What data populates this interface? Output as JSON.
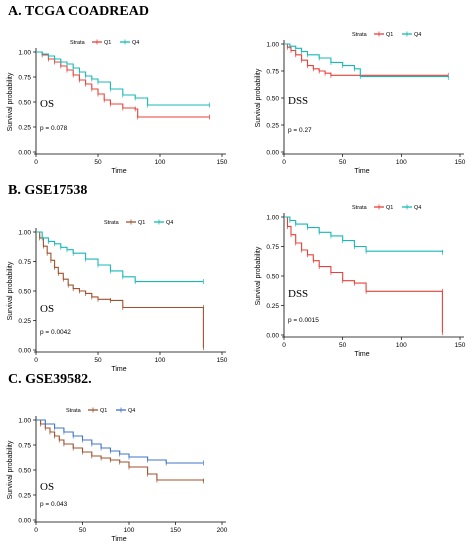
{
  "sections": [
    {
      "title": "A.  TCGA COADREAD"
    },
    {
      "title": "B.  GSE17538"
    },
    {
      "title": "C.  GSE39582."
    }
  ],
  "chart_data": [
    {
      "type": "line",
      "subtype": "kaplan-meier",
      "section": "A",
      "legend_title": "Strata",
      "legend_placement": "top",
      "xlabel": "Time",
      "ylabel": "Survival probability",
      "xticks": [
        "0",
        "50",
        "100",
        "150"
      ],
      "yticks": [
        "0.00",
        "0.25",
        "0.50",
        "0.75",
        "1.00"
      ],
      "xlim": [
        0,
        150
      ],
      "ylim": [
        0,
        1
      ],
      "grid": false,
      "annotation_endpoint": "OS",
      "annotation_p": "p = 0.078",
      "series": [
        {
          "name": "Q1",
          "color": "#e8403a",
          "x": [
            0,
            5,
            10,
            15,
            20,
            25,
            30,
            35,
            40,
            45,
            50,
            55,
            60,
            70,
            80,
            82,
            140
          ],
          "y": [
            1.0,
            0.97,
            0.93,
            0.9,
            0.86,
            0.82,
            0.77,
            0.72,
            0.68,
            0.63,
            0.58,
            0.52,
            0.48,
            0.44,
            0.43,
            0.35,
            0.35
          ]
        },
        {
          "name": "Q4",
          "color": "#17b9b5",
          "x": [
            0,
            5,
            10,
            15,
            20,
            25,
            30,
            35,
            40,
            45,
            50,
            60,
            70,
            80,
            90,
            140
          ],
          "y": [
            1.0,
            0.98,
            0.96,
            0.93,
            0.9,
            0.88,
            0.84,
            0.8,
            0.76,
            0.73,
            0.7,
            0.63,
            0.57,
            0.54,
            0.47,
            0.47
          ]
        }
      ]
    },
    {
      "type": "line",
      "subtype": "kaplan-meier",
      "section": "A",
      "legend_title": "Strata",
      "legend_placement": "top",
      "xlabel": "Time",
      "ylabel": "Survival probability",
      "xticks": [
        "0",
        "50",
        "100",
        "150"
      ],
      "yticks": [
        "0.00",
        "0.25",
        "0.50",
        "0.75",
        "1.00"
      ],
      "xlim": [
        0,
        150
      ],
      "ylim": [
        0,
        1
      ],
      "grid": false,
      "annotation_endpoint": "DSS",
      "annotation_p": "p = 0.27",
      "series": [
        {
          "name": "Q1",
          "color": "#e8403a",
          "x": [
            0,
            3,
            6,
            10,
            15,
            20,
            25,
            30,
            35,
            40,
            140
          ],
          "y": [
            1.0,
            0.97,
            0.94,
            0.9,
            0.85,
            0.8,
            0.77,
            0.75,
            0.73,
            0.71,
            0.71
          ]
        },
        {
          "name": "Q4",
          "color": "#17b9b5",
          "x": [
            0,
            5,
            10,
            15,
            20,
            30,
            40,
            50,
            60,
            65,
            140
          ],
          "y": [
            1.0,
            0.98,
            0.96,
            0.93,
            0.9,
            0.87,
            0.83,
            0.8,
            0.77,
            0.7,
            0.69
          ]
        }
      ]
    },
    {
      "type": "line",
      "subtype": "kaplan-meier",
      "section": "B",
      "legend_title": "Strata",
      "legend_placement": "top",
      "xlabel": "Time",
      "ylabel": "Survival probability",
      "xticks": [
        "0",
        "50",
        "100",
        "150"
      ],
      "yticks": [
        "0.00",
        "0.25",
        "0.50",
        "0.75",
        "1.00"
      ],
      "xlim": [
        0,
        150
      ],
      "ylim": [
        0,
        1
      ],
      "grid": false,
      "annotation_endpoint": "OS",
      "annotation_p": "p = 0.0042",
      "series": [
        {
          "name": "Q1",
          "color": "#a0512d",
          "x": [
            0,
            3,
            6,
            9,
            12,
            15,
            18,
            22,
            26,
            30,
            35,
            40,
            45,
            50,
            60,
            70,
            135,
            135
          ],
          "y": [
            1.0,
            0.95,
            0.88,
            0.82,
            0.76,
            0.7,
            0.65,
            0.6,
            0.55,
            0.52,
            0.5,
            0.48,
            0.45,
            0.43,
            0.42,
            0.36,
            0.36,
            0.02
          ]
        },
        {
          "name": "Q4",
          "color": "#17b9b5",
          "x": [
            0,
            5,
            10,
            15,
            20,
            25,
            30,
            40,
            50,
            60,
            70,
            80,
            135
          ],
          "y": [
            1.0,
            0.95,
            0.92,
            0.9,
            0.87,
            0.85,
            0.82,
            0.77,
            0.72,
            0.67,
            0.62,
            0.58,
            0.58
          ]
        }
      ]
    },
    {
      "type": "line",
      "subtype": "kaplan-meier",
      "section": "B",
      "legend_title": "Strata",
      "legend_placement": "top",
      "xlabel": "Time",
      "ylabel": "Survival probability",
      "xticks": [
        "0",
        "50",
        "100",
        "150"
      ],
      "yticks": [
        "0.00",
        "0.25",
        "0.50",
        "0.75",
        "1.00"
      ],
      "xlim": [
        0,
        150
      ],
      "ylim": [
        0,
        1
      ],
      "grid": false,
      "annotation_endpoint": "DSS",
      "annotation_p": "p = 0.0015",
      "series": [
        {
          "name": "Q1",
          "color": "#e8403a",
          "x": [
            0,
            3,
            6,
            10,
            15,
            20,
            25,
            30,
            40,
            50,
            60,
            70,
            135,
            135
          ],
          "y": [
            1.0,
            0.92,
            0.85,
            0.78,
            0.72,
            0.68,
            0.63,
            0.58,
            0.53,
            0.46,
            0.44,
            0.37,
            0.37,
            0.02
          ]
        },
        {
          "name": "Q4",
          "color": "#17b9b5",
          "x": [
            0,
            5,
            10,
            20,
            30,
            40,
            50,
            60,
            70,
            135
          ],
          "y": [
            1.0,
            0.97,
            0.94,
            0.91,
            0.87,
            0.84,
            0.8,
            0.75,
            0.71,
            0.7
          ]
        }
      ]
    },
    {
      "type": "line",
      "subtype": "kaplan-meier",
      "section": "C",
      "legend_title": "Strata",
      "legend_placement": "top",
      "xlabel": "Time",
      "ylabel": "Survival probability",
      "xticks": [
        "0",
        "50",
        "100",
        "150",
        "200"
      ],
      "yticks": [
        "0.00",
        "0.25",
        "0.50",
        "0.75",
        "1.00"
      ],
      "xlim": [
        0,
        200
      ],
      "ylim": [
        0,
        1
      ],
      "grid": false,
      "annotation_endpoint": "OS",
      "annotation_p": "p = 0.043",
      "series": [
        {
          "name": "Q1",
          "color": "#a0512d",
          "x": [
            0,
            5,
            10,
            15,
            20,
            25,
            30,
            40,
            50,
            60,
            70,
            80,
            90,
            100,
            120,
            130,
            180
          ],
          "y": [
            1.0,
            0.96,
            0.92,
            0.88,
            0.84,
            0.8,
            0.76,
            0.72,
            0.68,
            0.64,
            0.62,
            0.6,
            0.58,
            0.53,
            0.46,
            0.4,
            0.39
          ]
        },
        {
          "name": "Q4",
          "color": "#3f74c9",
          "x": [
            0,
            10,
            20,
            30,
            40,
            50,
            60,
            70,
            80,
            90,
            100,
            120,
            140,
            180
          ],
          "y": [
            1.0,
            0.96,
            0.92,
            0.88,
            0.84,
            0.8,
            0.76,
            0.72,
            0.69,
            0.66,
            0.63,
            0.6,
            0.57,
            0.57
          ]
        }
      ]
    }
  ]
}
